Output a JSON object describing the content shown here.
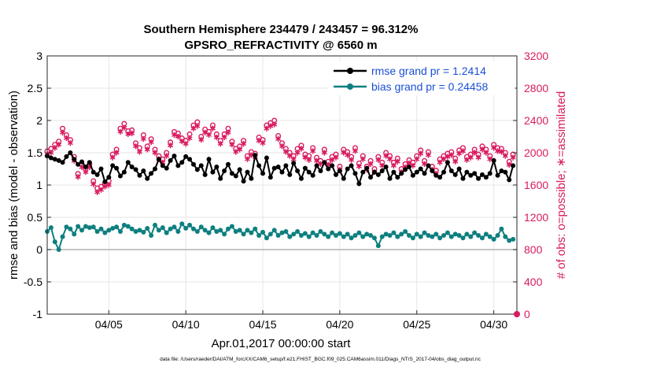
{
  "chart_data": {
    "type": "line",
    "title": "Southern Hemisphere 234479 / 243457 = 96.312%",
    "subtitle": "GPSRO_REFRACTIVITY @ 6560 m",
    "xlabel": "Apr.01,2017 00:00:00 start",
    "ylabel_left": "rmse and bias (model - observation)",
    "ylabel_right": "# of obs: o=possible; ∗=assimilated",
    "footer": "data file: /Users/raeder/DAI/ATM_forcXX/CAM6_setup/f.e21.FHIST_BGC.f09_025.CAM6assim.011/Diags_NTrS_2017-04/obs_diag_output.nc",
    "x_range": [
      1,
      31.5
    ],
    "x_ticks": [
      {
        "value": 5,
        "label": "04/05"
      },
      {
        "value": 10,
        "label": "04/10"
      },
      {
        "value": 15,
        "label": "04/15"
      },
      {
        "value": 20,
        "label": "04/20"
      },
      {
        "value": 25,
        "label": "04/25"
      },
      {
        "value": 30,
        "label": "04/30"
      }
    ],
    "y_left_range": [
      -1,
      3
    ],
    "y_left_ticks": [
      "-1",
      "-0.5",
      "0",
      "0.5",
      "1",
      "1.5",
      "2",
      "2.5",
      "3"
    ],
    "y_right_range": [
      0,
      3200
    ],
    "y_right_ticks": [
      "0",
      "400",
      "800",
      "1200",
      "1600",
      "2000",
      "2400",
      "2800",
      "3200"
    ],
    "grid": true,
    "legend_position": "top-right",
    "colors": {
      "rmse": "#000000",
      "bias": "#0e7f7f",
      "obs": "#d81b60",
      "zero_line": "#b4b4b4",
      "grid": "#e6e6e6",
      "legend_text": "#1a4fd6"
    },
    "x": [
      1.0,
      1.25,
      1.5,
      1.75,
      2.0,
      2.25,
      2.5,
      2.75,
      3.0,
      3.25,
      3.5,
      3.75,
      4.0,
      4.25,
      4.5,
      4.75,
      5.0,
      5.25,
      5.5,
      5.75,
      6.0,
      6.25,
      6.5,
      6.75,
      7.0,
      7.25,
      7.5,
      7.75,
      8.0,
      8.25,
      8.5,
      8.75,
      9.0,
      9.25,
      9.5,
      9.75,
      10.0,
      10.25,
      10.5,
      10.75,
      11.0,
      11.25,
      11.5,
      11.75,
      12.0,
      12.25,
      12.5,
      12.75,
      13.0,
      13.25,
      13.5,
      13.75,
      14.0,
      14.25,
      14.5,
      14.75,
      15.0,
      15.25,
      15.5,
      15.75,
      16.0,
      16.25,
      16.5,
      16.75,
      17.0,
      17.25,
      17.5,
      17.75,
      18.0,
      18.25,
      18.5,
      18.75,
      19.0,
      19.25,
      19.5,
      19.75,
      20.0,
      20.25,
      20.5,
      20.75,
      21.0,
      21.25,
      21.5,
      21.75,
      22.0,
      22.25,
      22.5,
      22.75,
      23.0,
      23.25,
      23.5,
      23.75,
      24.0,
      24.25,
      24.5,
      24.75,
      25.0,
      25.25,
      25.5,
      25.75,
      26.0,
      26.25,
      26.5,
      26.75,
      27.0,
      27.25,
      27.5,
      27.75,
      28.0,
      28.25,
      28.5,
      28.75,
      29.0,
      29.25,
      29.5,
      29.75,
      30.0,
      30.25,
      30.5,
      30.75,
      31.0,
      31.25
    ],
    "series": [
      {
        "name": "rmse grand pr = 1.2414",
        "style": "line-dot",
        "values": [
          1.45,
          1.42,
          1.4,
          1.38,
          1.35,
          1.44,
          1.5,
          1.4,
          1.32,
          1.36,
          1.28,
          1.35,
          1.2,
          1.16,
          1.25,
          1.05,
          1.12,
          1.3,
          1.26,
          1.14,
          1.2,
          1.35,
          1.28,
          1.24,
          1.15,
          1.22,
          1.1,
          1.18,
          1.25,
          1.4,
          1.3,
          1.26,
          1.38,
          1.45,
          1.3,
          1.35,
          1.44,
          1.4,
          1.32,
          1.24,
          1.3,
          1.16,
          1.4,
          1.2,
          1.28,
          1.1,
          1.22,
          1.32,
          1.18,
          1.14,
          1.24,
          1.06,
          1.2,
          1.1,
          1.46,
          1.3,
          1.18,
          1.42,
          1.12,
          1.26,
          1.28,
          1.2,
          1.3,
          1.16,
          1.34,
          1.22,
          1.1,
          1.26,
          1.2,
          1.15,
          1.3,
          1.22,
          1.35,
          1.25,
          1.3,
          1.16,
          1.22,
          1.1,
          1.25,
          1.3,
          1.18,
          1.02,
          1.2,
          1.26,
          1.12,
          1.2,
          1.16,
          1.22,
          1.28,
          1.1,
          1.2,
          1.12,
          1.18,
          1.24,
          1.28,
          1.15,
          1.2,
          1.25,
          1.18,
          1.3,
          1.22,
          1.15,
          1.12,
          1.2,
          1.35,
          1.22,
          1.16,
          1.25,
          1.1,
          1.2,
          1.15,
          1.18,
          1.1,
          1.16,
          1.12,
          1.18,
          1.38,
          1.15,
          1.22,
          1.2,
          1.08,
          1.3
        ]
      },
      {
        "name": "bias grand pr = 0.24458",
        "style": "line-dot",
        "values": [
          0.28,
          0.34,
          0.12,
          0.0,
          0.2,
          0.35,
          0.32,
          0.24,
          0.36,
          0.3,
          0.36,
          0.34,
          0.35,
          0.28,
          0.32,
          0.26,
          0.3,
          0.33,
          0.35,
          0.28,
          0.38,
          0.36,
          0.32,
          0.28,
          0.3,
          0.27,
          0.33,
          0.22,
          0.38,
          0.3,
          0.34,
          0.26,
          0.32,
          0.35,
          0.28,
          0.4,
          0.33,
          0.38,
          0.32,
          0.28,
          0.35,
          0.3,
          0.26,
          0.34,
          0.28,
          0.3,
          0.24,
          0.32,
          0.36,
          0.28,
          0.3,
          0.24,
          0.3,
          0.26,
          0.32,
          0.22,
          0.27,
          0.18,
          0.24,
          0.3,
          0.22,
          0.26,
          0.28,
          0.2,
          0.24,
          0.28,
          0.22,
          0.25,
          0.2,
          0.26,
          0.22,
          0.28,
          0.24,
          0.2,
          0.26,
          0.22,
          0.25,
          0.2,
          0.24,
          0.18,
          0.22,
          0.26,
          0.2,
          0.24,
          0.22,
          0.18,
          0.06,
          0.2,
          0.24,
          0.22,
          0.26,
          0.2,
          0.24,
          0.28,
          0.22,
          0.18,
          0.24,
          0.2,
          0.26,
          0.22,
          0.2,
          0.24,
          0.18,
          0.22,
          0.26,
          0.2,
          0.24,
          0.22,
          0.18,
          0.24,
          0.2,
          0.26,
          0.22,
          0.18,
          0.24,
          0.2,
          0.16,
          0.22,
          0.32,
          0.2,
          0.14,
          0.16
        ]
      },
      {
        "name": "possible",
        "style": "marker-o",
        "axis": "right",
        "values": [
          2020,
          2050,
          2100,
          2140,
          2300,
          2220,
          2160,
          1950,
          1740,
          1860,
          1800,
          1860,
          1650,
          1560,
          1580,
          1620,
          1650,
          1980,
          2040,
          2300,
          2360,
          2270,
          2280,
          2120,
          2060,
          2220,
          2080,
          2170,
          2040,
          1960,
          1920,
          2000,
          2130,
          2260,
          2240,
          2180,
          2150,
          2230,
          2340,
          2380,
          2200,
          2290,
          2260,
          2340,
          2230,
          2150,
          2230,
          2300,
          2140,
          2050,
          2080,
          2150,
          1960,
          2010,
          1990,
          2190,
          2160,
          2340,
          2370,
          2400,
          2210,
          2120,
          2050,
          2000,
          1960,
          2050,
          2090,
          1980,
          1960,
          2060,
          1940,
          1900,
          2040,
          1890,
          1950,
          1980,
          1830,
          2040,
          2010,
          1950,
          2060,
          1870,
          1960,
          1830,
          1900,
          1800,
          1950,
          1880,
          2000,
          1960,
          1880,
          1930,
          1800,
          1860,
          1910,
          1880,
          1960,
          2030,
          1900,
          2010,
          1830,
          1780,
          1920,
          1960,
          1990,
          2010,
          1930,
          2030,
          2060,
          1950,
          1980,
          2040,
          1980,
          2080,
          2040,
          1960,
          2100,
          2060,
          2050,
          2000,
          1890,
          1980
        ]
      },
      {
        "name": "assimilated",
        "style": "marker-star",
        "axis": "right",
        "values": [
          1980,
          2000,
          2060,
          2100,
          2250,
          2180,
          2120,
          1900,
          1700,
          1820,
          1760,
          1820,
          1610,
          1510,
          1540,
          1580,
          1600,
          1940,
          2000,
          2260,
          2310,
          2230,
          2240,
          2080,
          2010,
          2170,
          2040,
          2130,
          2000,
          1920,
          1880,
          1960,
          2090,
          2220,
          2200,
          2140,
          2110,
          2180,
          2300,
          2330,
          2160,
          2250,
          2220,
          2300,
          2190,
          2110,
          2190,
          2250,
          2100,
          2010,
          2040,
          2110,
          1920,
          1970,
          1950,
          2150,
          2120,
          2300,
          2330,
          2350,
          2170,
          2080,
          2010,
          1960,
          1920,
          2000,
          2050,
          1940,
          1910,
          2020,
          1900,
          1860,
          2000,
          1850,
          1910,
          1940,
          1790,
          2000,
          1970,
          1910,
          2020,
          1830,
          1920,
          1790,
          1860,
          1760,
          1910,
          1840,
          1960,
          1920,
          1840,
          1890,
          1760,
          1820,
          1870,
          1840,
          1920,
          1990,
          1860,
          1970,
          1790,
          1740,
          1880,
          1920,
          1950,
          1970,
          1890,
          1990,
          2020,
          1910,
          1940,
          2000,
          1940,
          2040,
          2000,
          1920,
          2060,
          2020,
          2010,
          1960,
          1850,
          1940
        ]
      }
    ],
    "legend": [
      {
        "label": "rmse grand pr = 1.2414",
        "color": "#000000"
      },
      {
        "label": "bias grand pr = 0.24458",
        "color": "#0e7f7f"
      }
    ]
  }
}
